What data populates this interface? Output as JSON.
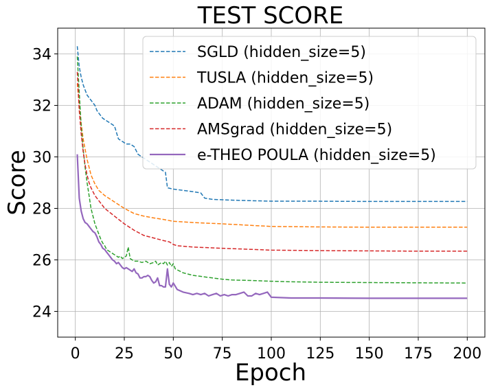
{
  "chart_data": {
    "type": "line",
    "title": "TEST SCORE",
    "xlabel": "Epoch",
    "ylabel": "Score",
    "xlim": [
      -9,
      209
    ],
    "ylim": [
      23,
      35
    ],
    "xticks": [
      0,
      25,
      50,
      75,
      100,
      125,
      150,
      175,
      200
    ],
    "yticks": [
      24,
      26,
      28,
      30,
      32,
      34
    ],
    "grid": true,
    "legend_position": "top-right",
    "series": [
      {
        "name": "SGLD (hidden_size=5)",
        "color": "#1f77b4",
        "style": "dashed",
        "x": [
          1,
          2,
          3,
          4,
          5,
          6,
          7,
          8,
          9,
          10,
          11,
          12,
          14,
          16,
          18,
          20,
          22,
          24,
          26,
          28,
          30,
          32,
          34,
          36,
          38,
          40,
          42,
          44,
          46,
          47,
          50,
          55,
          60,
          64,
          66,
          70,
          80,
          90,
          100,
          120,
          150,
          175,
          200
        ],
        "y": [
          34.3,
          33.5,
          33.1,
          32.8,
          32.6,
          32.4,
          32.3,
          32.2,
          32.1,
          32.0,
          31.8,
          31.7,
          31.5,
          31.4,
          31.3,
          31.2,
          30.7,
          30.6,
          30.5,
          30.5,
          30.4,
          30.1,
          30.0,
          29.9,
          29.8,
          29.7,
          29.6,
          29.5,
          29.4,
          28.8,
          28.75,
          28.7,
          28.65,
          28.6,
          28.4,
          28.35,
          28.32,
          28.3,
          28.28,
          28.28,
          28.27,
          28.27,
          28.27
        ]
      },
      {
        "name": "TUSLA (hidden_size=5)",
        "color": "#ff7f0e",
        "style": "dashed",
        "x": [
          1,
          2,
          3,
          4,
          5,
          6,
          7,
          8,
          10,
          12,
          15,
          20,
          25,
          30,
          35,
          40,
          45,
          50,
          60,
          75,
          100,
          125,
          150,
          175,
          200
        ],
        "y": [
          32.85,
          32.0,
          31.3,
          30.7,
          30.3,
          29.9,
          29.6,
          29.3,
          28.95,
          28.7,
          28.5,
          28.25,
          28.0,
          27.8,
          27.7,
          27.63,
          27.57,
          27.5,
          27.45,
          27.4,
          27.3,
          27.28,
          27.27,
          27.27,
          27.27
        ]
      },
      {
        "name": "ADAM (hidden_size=5)",
        "color": "#2ca02c",
        "style": "dashed",
        "x": [
          1,
          2,
          3,
          4,
          5,
          6,
          7,
          8,
          9,
          10,
          11,
          12,
          13,
          14,
          15,
          16,
          18,
          20,
          21,
          22,
          23,
          24,
          25,
          26,
          27,
          28,
          29,
          30,
          32,
          34,
          36,
          38,
          40,
          41,
          42,
          43,
          44,
          45,
          46,
          47,
          48,
          49,
          50,
          51,
          55,
          60,
          65,
          70,
          75,
          80,
          90,
          100,
          110,
          125,
          150,
          175,
          200
        ],
        "y": [
          33.9,
          32.5,
          31.2,
          30.3,
          29.6,
          29.0,
          28.5,
          28.0,
          27.7,
          27.4,
          27.2,
          27.0,
          26.8,
          26.65,
          26.55,
          26.4,
          26.3,
          26.2,
          26.15,
          26.1,
          26.15,
          26.05,
          26.1,
          26.15,
          26.5,
          26.05,
          26.0,
          25.95,
          25.95,
          25.9,
          25.95,
          25.85,
          25.9,
          25.95,
          25.8,
          25.85,
          25.9,
          25.85,
          25.95,
          25.8,
          25.9,
          25.75,
          25.85,
          25.65,
          25.5,
          25.4,
          25.35,
          25.3,
          25.25,
          25.22,
          25.2,
          25.17,
          25.15,
          25.13,
          25.12,
          25.11,
          25.1
        ]
      },
      {
        "name": "AMSgrad (hidden_size=5)",
        "color": "#d62728",
        "style": "dashed",
        "x": [
          1,
          2,
          3,
          4,
          5,
          6,
          7,
          8,
          10,
          12,
          15,
          20,
          25,
          30,
          35,
          40,
          45,
          48,
          50,
          52,
          60,
          75,
          100,
          125,
          150,
          175,
          200
        ],
        "y": [
          33.3,
          31.8,
          30.9,
          30.2,
          29.7,
          29.3,
          29.0,
          28.8,
          28.5,
          28.3,
          28.0,
          27.7,
          27.4,
          27.15,
          26.95,
          26.85,
          26.75,
          26.7,
          26.6,
          26.55,
          26.5,
          26.45,
          26.38,
          26.36,
          26.35,
          26.34,
          26.34
        ]
      },
      {
        "name": "e-THEO POULA (hidden_size=5)",
        "color": "#9467bd",
        "style": "solid",
        "x": [
          1,
          2,
          3,
          4,
          5,
          6,
          7,
          8,
          9,
          10,
          11,
          12,
          13,
          14,
          15,
          16,
          17,
          18,
          19,
          20,
          21,
          22,
          23,
          24,
          25,
          26,
          27,
          28,
          29,
          30,
          31,
          32,
          33,
          34,
          35,
          36,
          37,
          38,
          39,
          40,
          41,
          42,
          43,
          44,
          45,
          46,
          47,
          48,
          49,
          50,
          52,
          55,
          58,
          60,
          62,
          64,
          66,
          68,
          70,
          72,
          74,
          76,
          78,
          80,
          82,
          84,
          86,
          88,
          90,
          92,
          94,
          96,
          98,
          100,
          110,
          125,
          150,
          175,
          200
        ],
        "y": [
          30.1,
          28.4,
          27.9,
          27.6,
          27.45,
          27.4,
          27.3,
          27.2,
          27.1,
          27.05,
          26.9,
          26.7,
          26.6,
          26.45,
          26.4,
          26.3,
          26.2,
          26.1,
          26.0,
          25.95,
          25.85,
          25.9,
          25.8,
          25.7,
          25.65,
          25.7,
          25.65,
          25.6,
          25.55,
          25.65,
          25.5,
          25.45,
          25.3,
          25.3,
          25.35,
          25.35,
          25.4,
          25.35,
          25.2,
          25.1,
          25.15,
          25.3,
          25.0,
          25.0,
          24.95,
          24.95,
          25.65,
          25.05,
          24.95,
          25.1,
          24.85,
          24.75,
          24.7,
          24.65,
          24.7,
          24.65,
          24.7,
          24.6,
          24.65,
          24.7,
          24.6,
          24.65,
          24.6,
          24.65,
          24.65,
          24.7,
          24.75,
          24.6,
          24.6,
          24.7,
          24.65,
          24.7,
          24.75,
          24.55,
          24.52,
          24.52,
          24.51,
          24.51,
          24.51
        ]
      }
    ]
  }
}
